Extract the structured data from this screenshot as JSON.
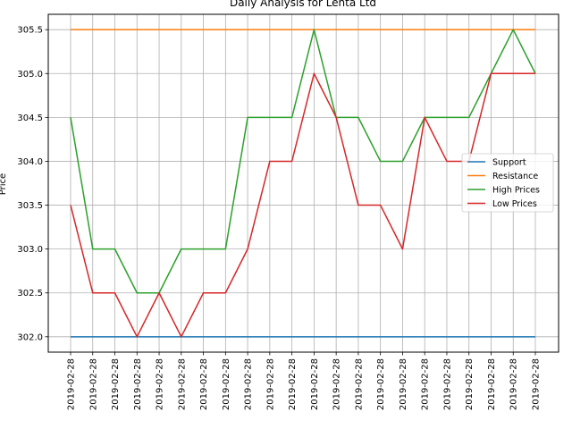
{
  "chart_data": {
    "type": "line",
    "title": "Daily Analysis for Lenta Ltd",
    "xlabel": "",
    "ylabel": "Price",
    "x": [
      "2019-02-28",
      "2019-02-28",
      "2019-02-28",
      "2019-02-28",
      "2019-02-28",
      "2019-02-28",
      "2019-02-28",
      "2019-02-28",
      "2019-02-28",
      "2019-02-28",
      "2019-02-28",
      "2019-02-28",
      "2019-02-28",
      "2019-02-28",
      "2019-02-28",
      "2019-02-28",
      "2019-02-28",
      "2019-02-28",
      "2019-02-28",
      "2019-02-28",
      "2019-02-28",
      "2019-02-28"
    ],
    "ylim": [
      301.825,
      305.675
    ],
    "yticks": [
      302.0,
      302.5,
      303.0,
      303.5,
      304.0,
      304.5,
      305.0,
      305.5
    ],
    "grid": true,
    "legend_position": "center-right",
    "series": [
      {
        "name": "Support",
        "color": "#1f77b4",
        "values": [
          302.0,
          302.0,
          302.0,
          302.0,
          302.0,
          302.0,
          302.0,
          302.0,
          302.0,
          302.0,
          302.0,
          302.0,
          302.0,
          302.0,
          302.0,
          302.0,
          302.0,
          302.0,
          302.0,
          302.0,
          302.0,
          302.0
        ]
      },
      {
        "name": "Resistance",
        "color": "#ff7f0e",
        "values": [
          305.5,
          305.5,
          305.5,
          305.5,
          305.5,
          305.5,
          305.5,
          305.5,
          305.5,
          305.5,
          305.5,
          305.5,
          305.5,
          305.5,
          305.5,
          305.5,
          305.5,
          305.5,
          305.5,
          305.5,
          305.5,
          305.5
        ]
      },
      {
        "name": "High Prices",
        "color": "#2ca02c",
        "values": [
          304.5,
          303.0,
          303.0,
          302.5,
          302.5,
          303.0,
          303.0,
          303.0,
          304.5,
          304.5,
          304.5,
          305.5,
          304.5,
          304.5,
          304.0,
          304.0,
          304.5,
          304.5,
          304.5,
          305.0,
          305.5,
          305.0
        ]
      },
      {
        "name": "Low Prices",
        "color": "#d62728",
        "values": [
          303.5,
          302.5,
          302.5,
          302.0,
          302.5,
          302.0,
          302.5,
          302.5,
          303.0,
          304.0,
          304.0,
          305.0,
          304.5,
          303.5,
          303.5,
          303.0,
          304.5,
          304.0,
          304.0,
          305.0,
          305.0,
          305.0
        ]
      }
    ]
  }
}
